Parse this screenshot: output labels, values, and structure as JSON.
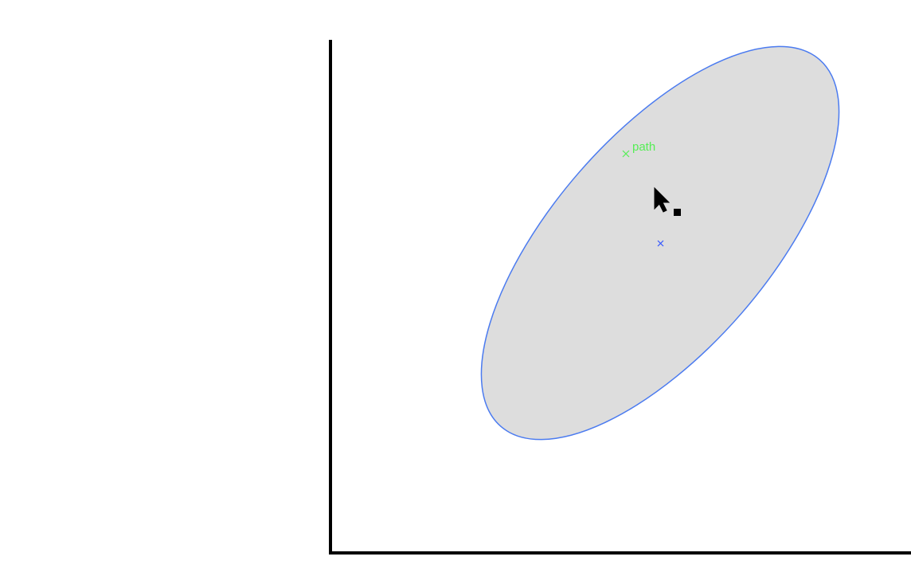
{
  "canvas": {
    "background_color": "#ffffff",
    "axes_color": "#000000"
  },
  "ellipse": {
    "fill_color": "#dddddd",
    "stroke_color": "#4b7bf0",
    "center_marker_color": "#3355ff",
    "center_marker_icon": "x-marker-icon"
  },
  "snap_hint": {
    "label": "path",
    "color": "#55ee55",
    "marker_icon": "x-marker-icon"
  },
  "cursor": {
    "icon": "move-cursor-icon",
    "color": "#000000"
  }
}
